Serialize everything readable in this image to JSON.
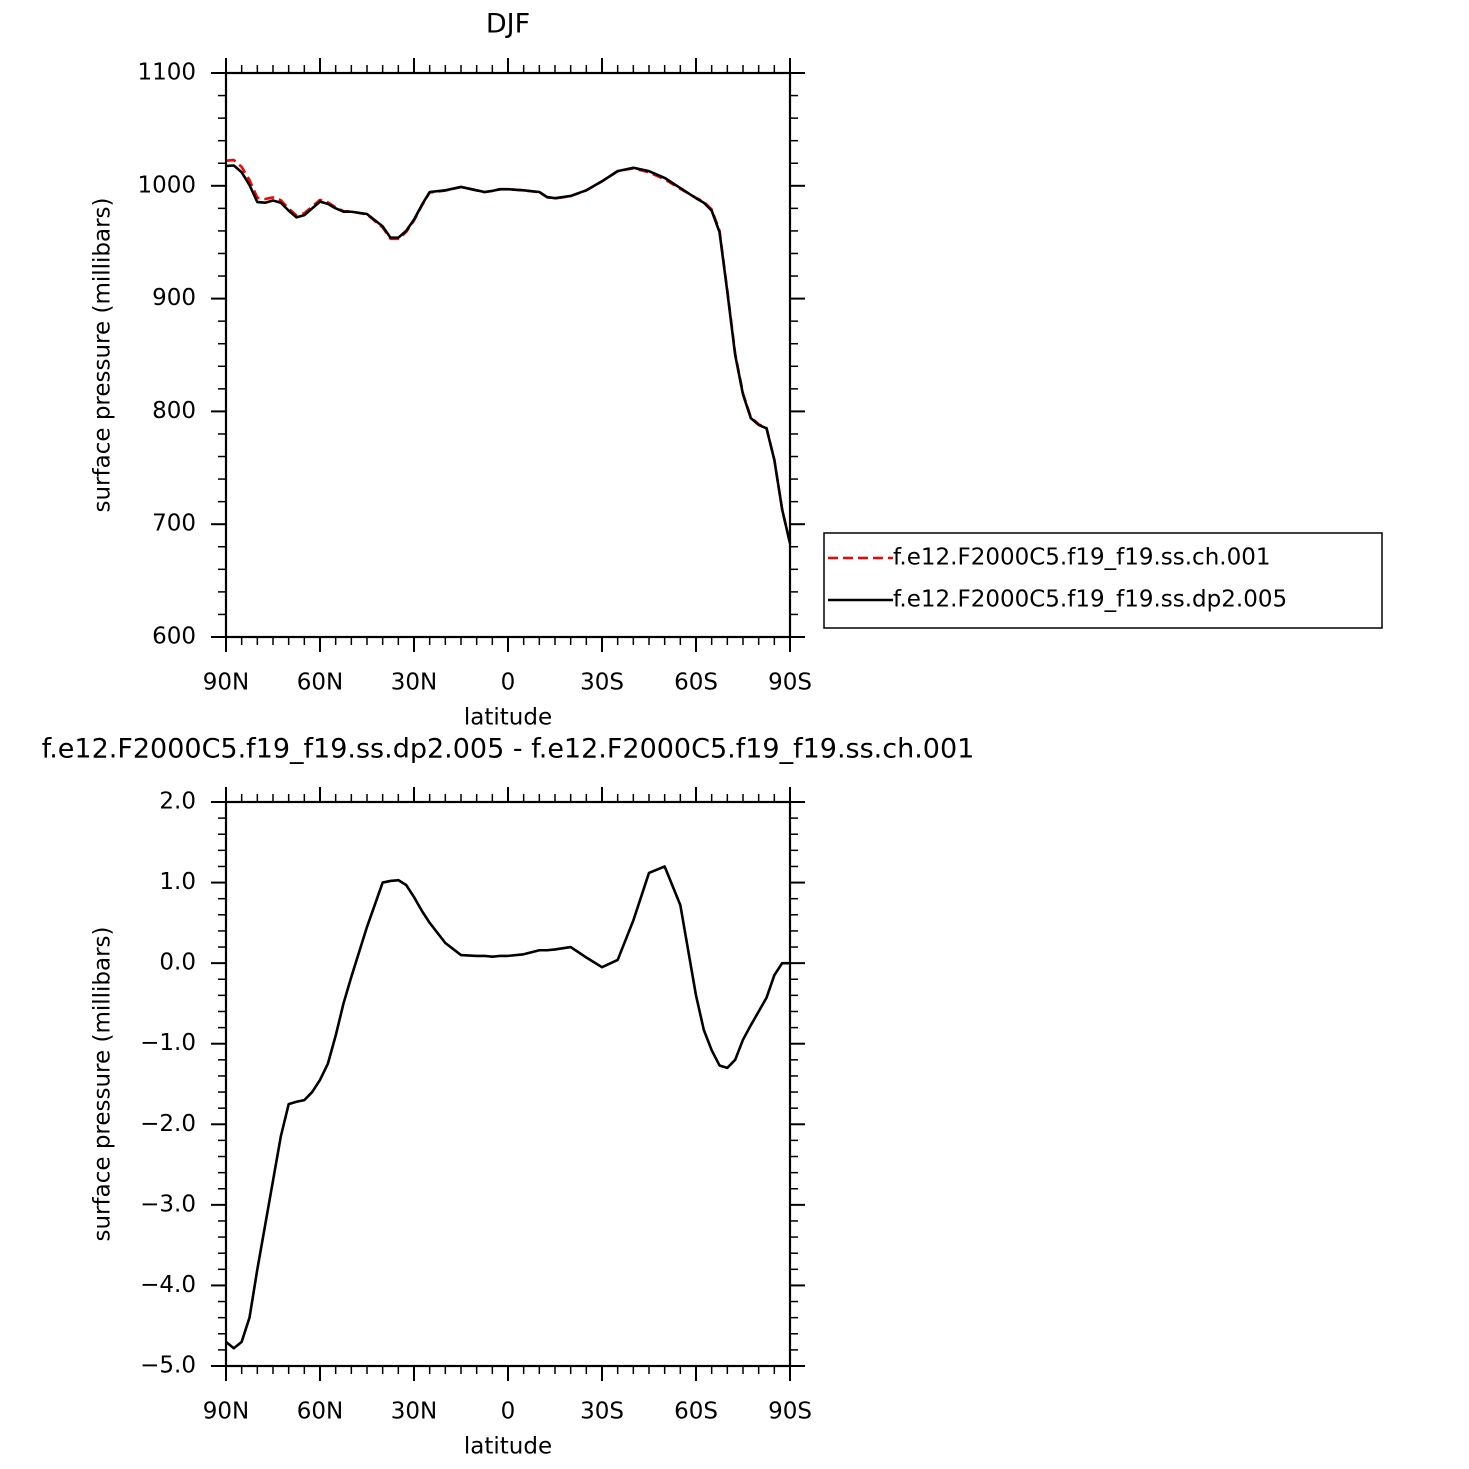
{
  "chart_data": [
    {
      "type": "line",
      "title": "DJF",
      "xlabel": "latitude",
      "ylabel": "surface pressure (millibars)",
      "x": [
        90,
        87.5,
        85,
        82.5,
        80,
        77.5,
        75,
        72.5,
        70,
        67.5,
        65,
        62.5,
        60,
        57.5,
        55,
        52.5,
        50,
        45,
        40,
        37.5,
        35,
        32.5,
        30,
        27.5,
        25,
        20,
        15,
        10,
        7.5,
        5,
        2.5,
        0,
        -5,
        -10,
        -12.5,
        -15,
        -20,
        -25,
        -30,
        -35,
        -40,
        -45,
        -50,
        -55,
        -60,
        -62.5,
        -65,
        -67.5,
        -70,
        -72.5,
        -75,
        -77.5,
        -80,
        -82.5,
        -85,
        -87.5,
        -90
      ],
      "series": [
        {
          "name": "f.e12.F2000C5.f19_f19.ss.ch.001",
          "color": "#ff0000",
          "dash": "dashed",
          "values": [
            1022.3,
            1022.8,
            1016.7,
            1005.1,
            989.4,
            988.3,
            989.7,
            987.2,
            979.8,
            973.7,
            975.7,
            981.6,
            987.5,
            985.3,
            980.9,
            977.5,
            977.2,
            974.6,
            963,
            953,
            953,
            959,
            969.2,
            982.4,
            994,
            995.8,
            998.9,
            995.9,
            994.4,
            995.4,
            996.9,
            996.9,
            995.9,
            994.3,
            989.8,
            988.8,
            990.8,
            995.9,
            1004,
            1013,
            1015.5,
            1011.9,
            1005.8,
            997.3,
            989.4,
            985.8,
            979.1,
            960.3,
            907.3,
            851.2,
            816,
            794.8,
            788.6,
            785.4,
            757.2,
            713,
            683
          ]
        },
        {
          "name": "f.e12.F2000C5.f19_f19.ss.dp2.005",
          "color": "#000000",
          "dash": "solid",
          "values": [
            1017.6,
            1018,
            1012,
            1000.7,
            985.6,
            985,
            987,
            985,
            978,
            972,
            974,
            980,
            986,
            984,
            980,
            977,
            977,
            975,
            964,
            954,
            954,
            960,
            970,
            983,
            994.5,
            996,
            999,
            996,
            994.5,
            995.5,
            997,
            997,
            996,
            994.5,
            990,
            989,
            991,
            996,
            1004,
            1013,
            1016,
            1013,
            1007,
            998,
            989,
            985,
            978,
            959,
            906,
            850,
            815,
            794,
            788,
            785,
            757,
            713,
            683
          ]
        }
      ],
      "xlim": [
        90,
        -90
      ],
      "xticks": [
        {
          "value": 90,
          "label": "90N"
        },
        {
          "value": 60,
          "label": "60N"
        },
        {
          "value": 30,
          "label": "30N"
        },
        0,
        {
          "value": -30,
          "label": "30S"
        },
        {
          "value": -60,
          "label": "60S"
        },
        {
          "value": -90,
          "label": "90S"
        }
      ],
      "ylim": [
        600,
        1100
      ],
      "yticks": [
        600,
        700,
        800,
        900,
        1000,
        1100
      ],
      "legend": "outside-right"
    },
    {
      "type": "line",
      "title": "f.e12.F2000C5.f19_f19.ss.dp2.005 - f.e12.F2000C5.f19_f19.ss.ch.001",
      "xlabel": "latitude",
      "ylabel": "surface pressure (millibars)",
      "x": [
        90,
        87.5,
        85,
        82.5,
        80,
        77.5,
        75,
        72.5,
        70,
        67.5,
        65,
        62.5,
        60,
        57.5,
        55,
        52.5,
        50,
        45,
        40,
        37.5,
        35,
        32.5,
        30,
        27.5,
        25,
        20,
        15,
        10,
        7.5,
        5,
        2.5,
        0,
        -5,
        -10,
        -12.5,
        -15,
        -20,
        -25,
        -30,
        -35,
        -40,
        -45,
        -50,
        -55,
        -60,
        -62.5,
        -65,
        -67.5,
        -70,
        -72.5,
        -75,
        -77.5,
        -80,
        -82.5,
        -85,
        -87.5,
        -90
      ],
      "color": "#000000",
      "values": [
        -4.7,
        -4.78,
        -4.7,
        -4.4,
        -3.8,
        -3.25,
        -2.7,
        -2.15,
        -1.75,
        -1.72,
        -1.7,
        -1.6,
        -1.45,
        -1.25,
        -0.9,
        -0.5,
        -0.17,
        0.45,
        1.0,
        1.02,
        1.03,
        0.97,
        0.82,
        0.65,
        0.5,
        0.25,
        0.1,
        0.09,
        0.09,
        0.08,
        0.09,
        0.09,
        0.11,
        0.16,
        0.16,
        0.17,
        0.2,
        0.07,
        -0.05,
        0.04,
        0.53,
        1.12,
        1.2,
        0.72,
        -0.4,
        -0.83,
        -1.08,
        -1.27,
        -1.3,
        -1.2,
        -0.95,
        -0.77,
        -0.6,
        -0.43,
        -0.15,
        0,
        0
      ],
      "xlim": [
        90,
        -90
      ],
      "xticks": [
        {
          "value": 90,
          "label": "90N"
        },
        {
          "value": 60,
          "label": "60N"
        },
        {
          "value": 30,
          "label": "30N"
        },
        0,
        {
          "value": -30,
          "label": "30S"
        },
        {
          "value": -60,
          "label": "60S"
        },
        {
          "value": -90,
          "label": "90S"
        }
      ],
      "ylim": [
        -5,
        2
      ],
      "yticks": [
        {
          "value": -5,
          "label": "−5.0"
        },
        {
          "value": -4,
          "label": "−4.0"
        },
        {
          "value": -3,
          "label": "−3.0"
        },
        {
          "value": -2,
          "label": "−2.0"
        },
        {
          "value": -1,
          "label": "−1.0"
        },
        {
          "value": 0,
          "label": "0.0"
        },
        {
          "value": 1,
          "label": "1.0"
        },
        {
          "value": 2,
          "label": "2.0"
        }
      ]
    }
  ]
}
